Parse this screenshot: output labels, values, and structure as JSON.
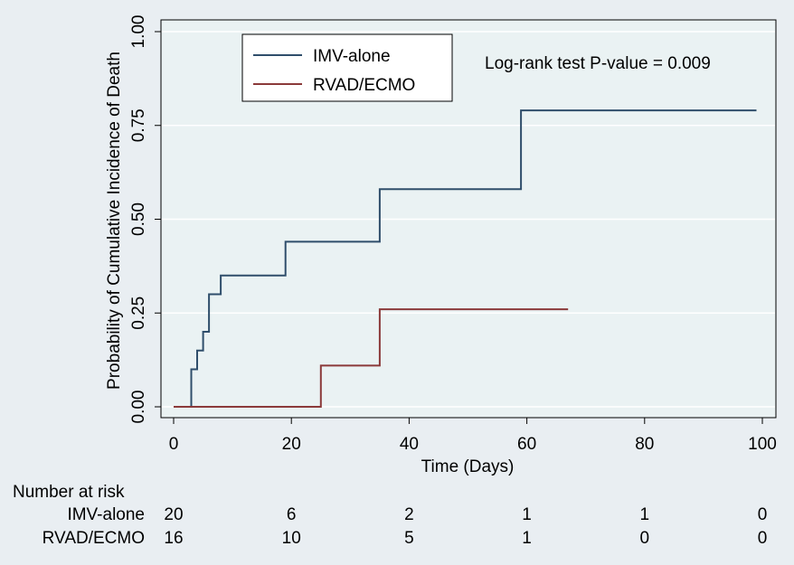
{
  "chart_data": {
    "type": "line",
    "step": true,
    "title": "",
    "xlabel": "Time (Days)",
    "ylabel": "Probability of Cumulative Incidence of Death",
    "xlim": [
      0,
      100
    ],
    "ylim": [
      0,
      1
    ],
    "x_ticks": [
      0,
      20,
      40,
      60,
      80,
      100
    ],
    "y_ticks": [
      0,
      0.25,
      0.5,
      0.75,
      1
    ],
    "y_tick_labels": [
      "0.00",
      "0.25",
      "0.50",
      "0.75",
      "1.00"
    ],
    "grid": true,
    "legend_position": "top-left",
    "annotation": "Log-rank test P-value = 0.009",
    "series": [
      {
        "name": "IMV-alone",
        "color": "#2f4e6b",
        "points": [
          [
            0,
            0
          ],
          [
            3,
            0
          ],
          [
            3,
            0.1
          ],
          [
            4,
            0.1
          ],
          [
            4,
            0.15
          ],
          [
            5,
            0.15
          ],
          [
            5,
            0.2
          ],
          [
            6,
            0.2
          ],
          [
            6,
            0.3
          ],
          [
            8,
            0.3
          ],
          [
            8,
            0.35
          ],
          [
            19,
            0.35
          ],
          [
            19,
            0.44
          ],
          [
            35,
            0.44
          ],
          [
            35,
            0.58
          ],
          [
            59,
            0.58
          ],
          [
            59,
            0.79
          ],
          [
            99,
            0.79
          ]
        ]
      },
      {
        "name": "RVAD/ECMO",
        "color": "#8b3a3a",
        "points": [
          [
            0,
            0
          ],
          [
            25,
            0
          ],
          [
            25,
            0.11
          ],
          [
            35,
            0.11
          ],
          [
            35,
            0.26
          ],
          [
            67,
            0.26
          ]
        ]
      }
    ],
    "risk_table": {
      "title": "Number at risk",
      "times": [
        0,
        20,
        40,
        60,
        80,
        100
      ],
      "rows": [
        {
          "name": "IMV-alone",
          "values": [
            "20",
            "6",
            "2",
            "1",
            "1",
            "0"
          ]
        },
        {
          "name": "RVAD/ECMO",
          "values": [
            "16",
            "10",
            "5",
            "1",
            "0",
            "0"
          ]
        }
      ]
    }
  }
}
